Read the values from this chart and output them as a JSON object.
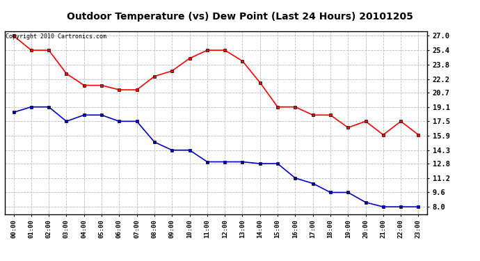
{
  "title": "Outdoor Temperature (vs) Dew Point (Last 24 Hours) 20101205",
  "copyright": "Copyright 2010 Cartronics.com",
  "x_labels": [
    "00:00",
    "01:00",
    "02:00",
    "03:00",
    "04:00",
    "05:00",
    "06:00",
    "07:00",
    "08:00",
    "09:00",
    "10:00",
    "11:00",
    "12:00",
    "13:00",
    "14:00",
    "15:00",
    "16:00",
    "17:00",
    "18:00",
    "19:00",
    "20:00",
    "21:00",
    "22:00",
    "23:00"
  ],
  "temp_data": [
    27.0,
    25.4,
    25.4,
    22.8,
    21.5,
    21.5,
    21.0,
    21.0,
    22.5,
    23.1,
    24.5,
    25.4,
    25.4,
    24.2,
    21.8,
    19.1,
    19.1,
    18.2,
    18.2,
    16.8,
    17.5,
    16.0,
    17.5,
    16.0
  ],
  "dew_data": [
    18.5,
    19.1,
    19.1,
    17.5,
    18.2,
    18.2,
    17.5,
    17.5,
    15.2,
    14.3,
    14.3,
    13.0,
    13.0,
    13.0,
    12.8,
    12.8,
    11.2,
    10.6,
    9.6,
    9.6,
    8.5,
    8.0,
    8.0,
    8.0
  ],
  "temp_color": "#ff0000",
  "dew_color": "#0000cc",
  "background_color": "#ffffff",
  "grid_color": "#bbbbbb",
  "yticks": [
    8.0,
    9.6,
    11.2,
    12.8,
    14.3,
    15.9,
    17.5,
    19.1,
    20.7,
    22.2,
    23.8,
    25.4,
    27.0
  ],
  "ylim": [
    7.2,
    27.5
  ],
  "marker": "s",
  "markersize": 3.5,
  "linewidth": 1.2
}
